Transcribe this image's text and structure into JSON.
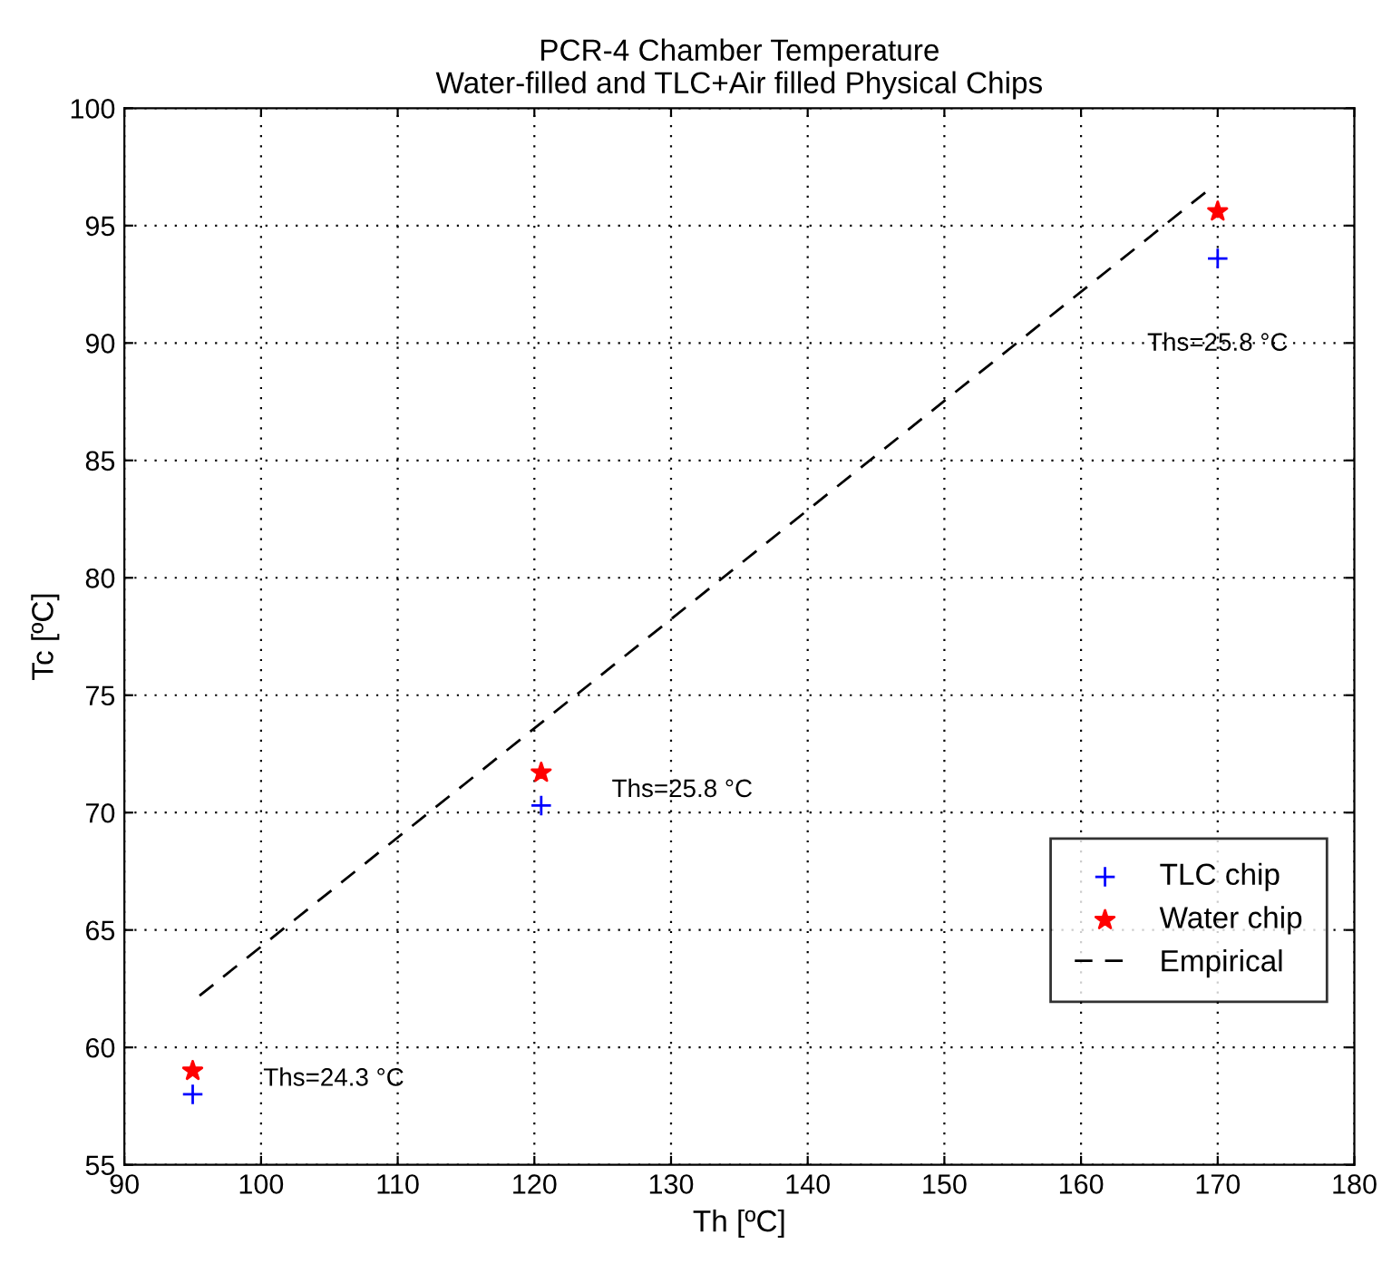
{
  "chart_data": {
    "type": "scatter",
    "title": "PCR-4 Chamber Temperature\nWater-filled and TLC+Air filled Physical Chips",
    "xlabel": "Th [ºC]",
    "ylabel": "Tc [ºC]",
    "series": [
      {
        "name": "TLC chip",
        "color": "#0000ff",
        "marker": "cross",
        "x": [
          95,
          120.5,
          170
        ],
        "values": [
          58.0,
          70.3,
          93.6
        ]
      },
      {
        "name": "Water chip",
        "color": "#ff0000",
        "marker": "star",
        "x": [
          95,
          120.5,
          170
        ],
        "values": [
          59.0,
          71.7,
          95.6
        ]
      },
      {
        "name": "Empirical",
        "type": "line",
        "color": "#000000",
        "line_style": "dashed",
        "marker": "none",
        "x": [
          95.5,
          169.5
        ],
        "values": [
          62.2,
          96.6
        ]
      }
    ],
    "annotations": [
      {
        "text": "Ths=24.3 °C",
        "x": 95,
        "y": 58.0
      },
      {
        "text": "Ths=25.8 °C",
        "x": 120.5,
        "y": 70.3
      },
      {
        "text": "Ths=25.8 °C",
        "x": 170,
        "y": 93.6
      }
    ],
    "xlim": [
      90,
      180
    ],
    "xticks": [
      90,
      100,
      110,
      120,
      130,
      140,
      150,
      160,
      170,
      180
    ],
    "ylim": [
      55,
      100
    ],
    "yticks": [
      55,
      60,
      65,
      70,
      75,
      80,
      85,
      90,
      95,
      100
    ],
    "grid": true,
    "legend": "bottom right"
  }
}
